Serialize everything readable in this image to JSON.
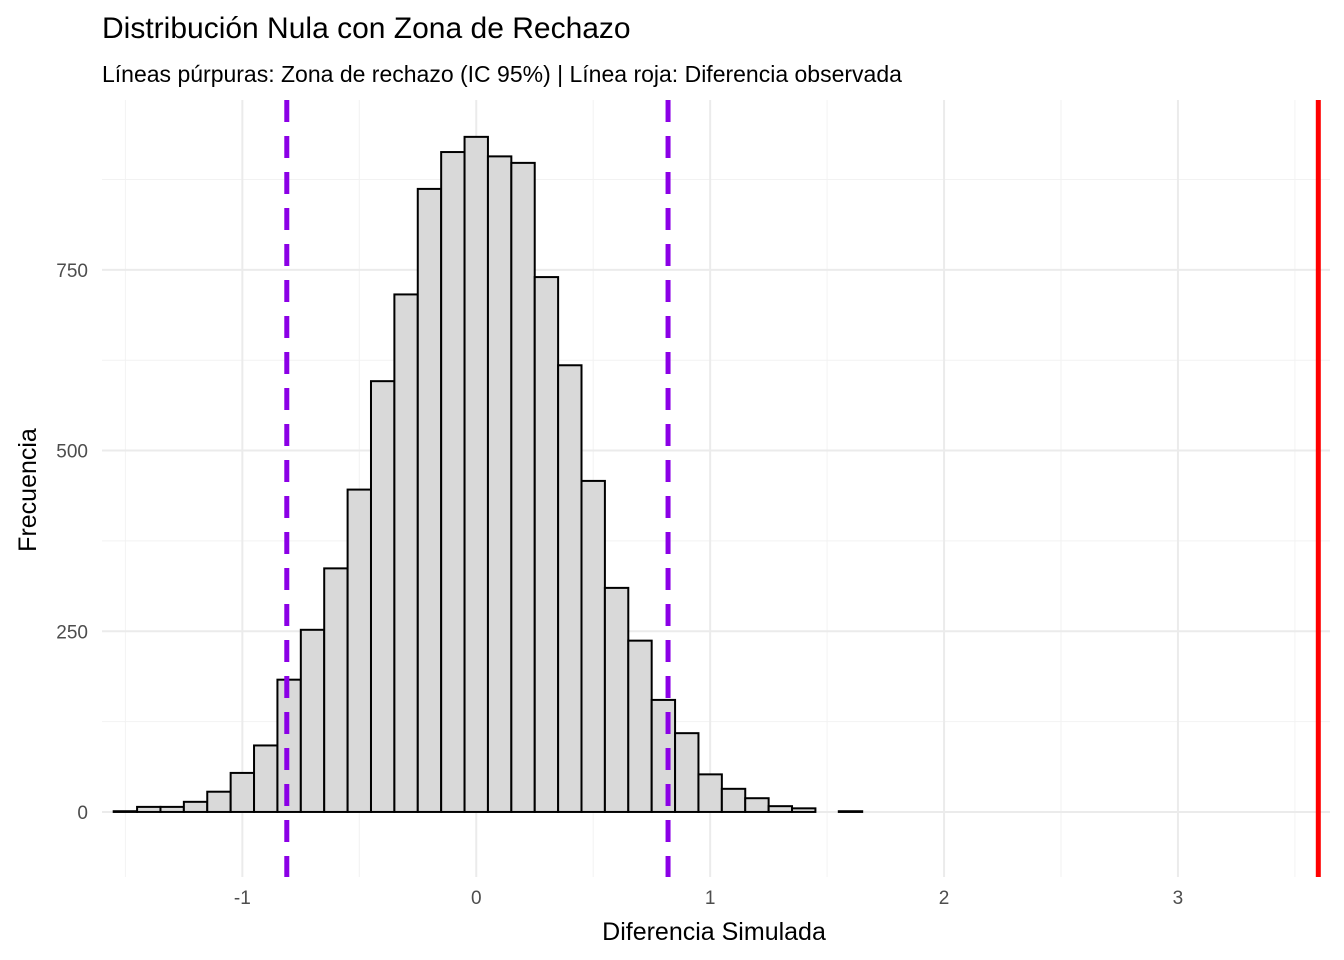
{
  "chart_data": {
    "type": "bar",
    "title": "Distribución Nula con Zona de Rechazo",
    "subtitle": "Líneas púrpuras: Zona de rechazo (IC 95%) | Línea roja: Diferencia observada",
    "xlabel": "Diferencia Simulada",
    "ylabel": "Frecuencia",
    "xlim": [
      -1.6,
      3.65
    ],
    "ylim": [
      -90,
      985
    ],
    "x_ticks": [
      -1,
      0,
      1,
      2,
      3
    ],
    "x_tick_labels": [
      "-1",
      "0",
      "1",
      "2",
      "3"
    ],
    "y_ticks": [
      0,
      250,
      500,
      750
    ],
    "y_tick_labels": [
      "0",
      "250",
      "500",
      "750"
    ],
    "grid": true,
    "bin_width": 0.1,
    "bins": [
      {
        "x": -1.5,
        "count": 1
      },
      {
        "x": -1.4,
        "count": 7
      },
      {
        "x": -1.3,
        "count": 7
      },
      {
        "x": -1.2,
        "count": 14
      },
      {
        "x": -1.1,
        "count": 28
      },
      {
        "x": -1.0,
        "count": 54
      },
      {
        "x": -0.9,
        "count": 92
      },
      {
        "x": -0.8,
        "count": 183
      },
      {
        "x": -0.7,
        "count": 252
      },
      {
        "x": -0.6,
        "count": 337
      },
      {
        "x": -0.5,
        "count": 446
      },
      {
        "x": -0.4,
        "count": 596
      },
      {
        "x": -0.3,
        "count": 716
      },
      {
        "x": -0.2,
        "count": 862
      },
      {
        "x": -0.1,
        "count": 913
      },
      {
        "x": 0.0,
        "count": 934
      },
      {
        "x": 0.1,
        "count": 907
      },
      {
        "x": 0.2,
        "count": 898
      },
      {
        "x": 0.3,
        "count": 740
      },
      {
        "x": 0.4,
        "count": 618
      },
      {
        "x": 0.5,
        "count": 458
      },
      {
        "x": 0.6,
        "count": 310
      },
      {
        "x": 0.7,
        "count": 237
      },
      {
        "x": 0.8,
        "count": 155
      },
      {
        "x": 0.9,
        "count": 109
      },
      {
        "x": 1.0,
        "count": 52
      },
      {
        "x": 1.1,
        "count": 32
      },
      {
        "x": 1.2,
        "count": 19
      },
      {
        "x": 1.3,
        "count": 8
      },
      {
        "x": 1.4,
        "count": 5
      },
      {
        "x": 1.5,
        "count": 0
      },
      {
        "x": 1.6,
        "count": 1
      },
      {
        "x": 1.7,
        "count": 0
      },
      {
        "x": 1.8,
        "count": 0
      },
      {
        "x": 1.9,
        "count": 0
      },
      {
        "x": 2.0,
        "count": 0
      },
      {
        "x": 2.1,
        "count": 0
      },
      {
        "x": 2.2,
        "count": 0
      },
      {
        "x": 2.3,
        "count": 0
      },
      {
        "x": 2.4,
        "count": 0
      },
      {
        "x": 2.5,
        "count": 0
      },
      {
        "x": 2.6,
        "count": 0
      },
      {
        "x": 2.7,
        "count": 0
      },
      {
        "x": 2.8,
        "count": 0
      },
      {
        "x": 2.9,
        "count": 0
      },
      {
        "x": 3.0,
        "count": 0
      },
      {
        "x": 3.1,
        "count": 0
      },
      {
        "x": 3.2,
        "count": 0
      },
      {
        "x": 3.3,
        "count": 0
      },
      {
        "x": 3.4,
        "count": 0
      },
      {
        "x": 3.5,
        "count": 0
      },
      {
        "x": 3.6,
        "count": 0
      }
    ],
    "reference_lines": [
      {
        "name": "Zona de rechazo inferior",
        "x": -0.81,
        "color": "#8b00e6",
        "style": "dashed"
      },
      {
        "name": "Zona de rechazo superior",
        "x": 0.82,
        "color": "#8b00e6",
        "style": "dashed"
      },
      {
        "name": "Diferencia observada",
        "x": 3.6,
        "color": "#ff0000",
        "style": "solid"
      }
    ],
    "colors": {
      "bar_fill": "#d9d9d9",
      "bar_outline": "#000000",
      "rejection_zone": "#8b00e6",
      "observed": "#ff0000"
    }
  }
}
